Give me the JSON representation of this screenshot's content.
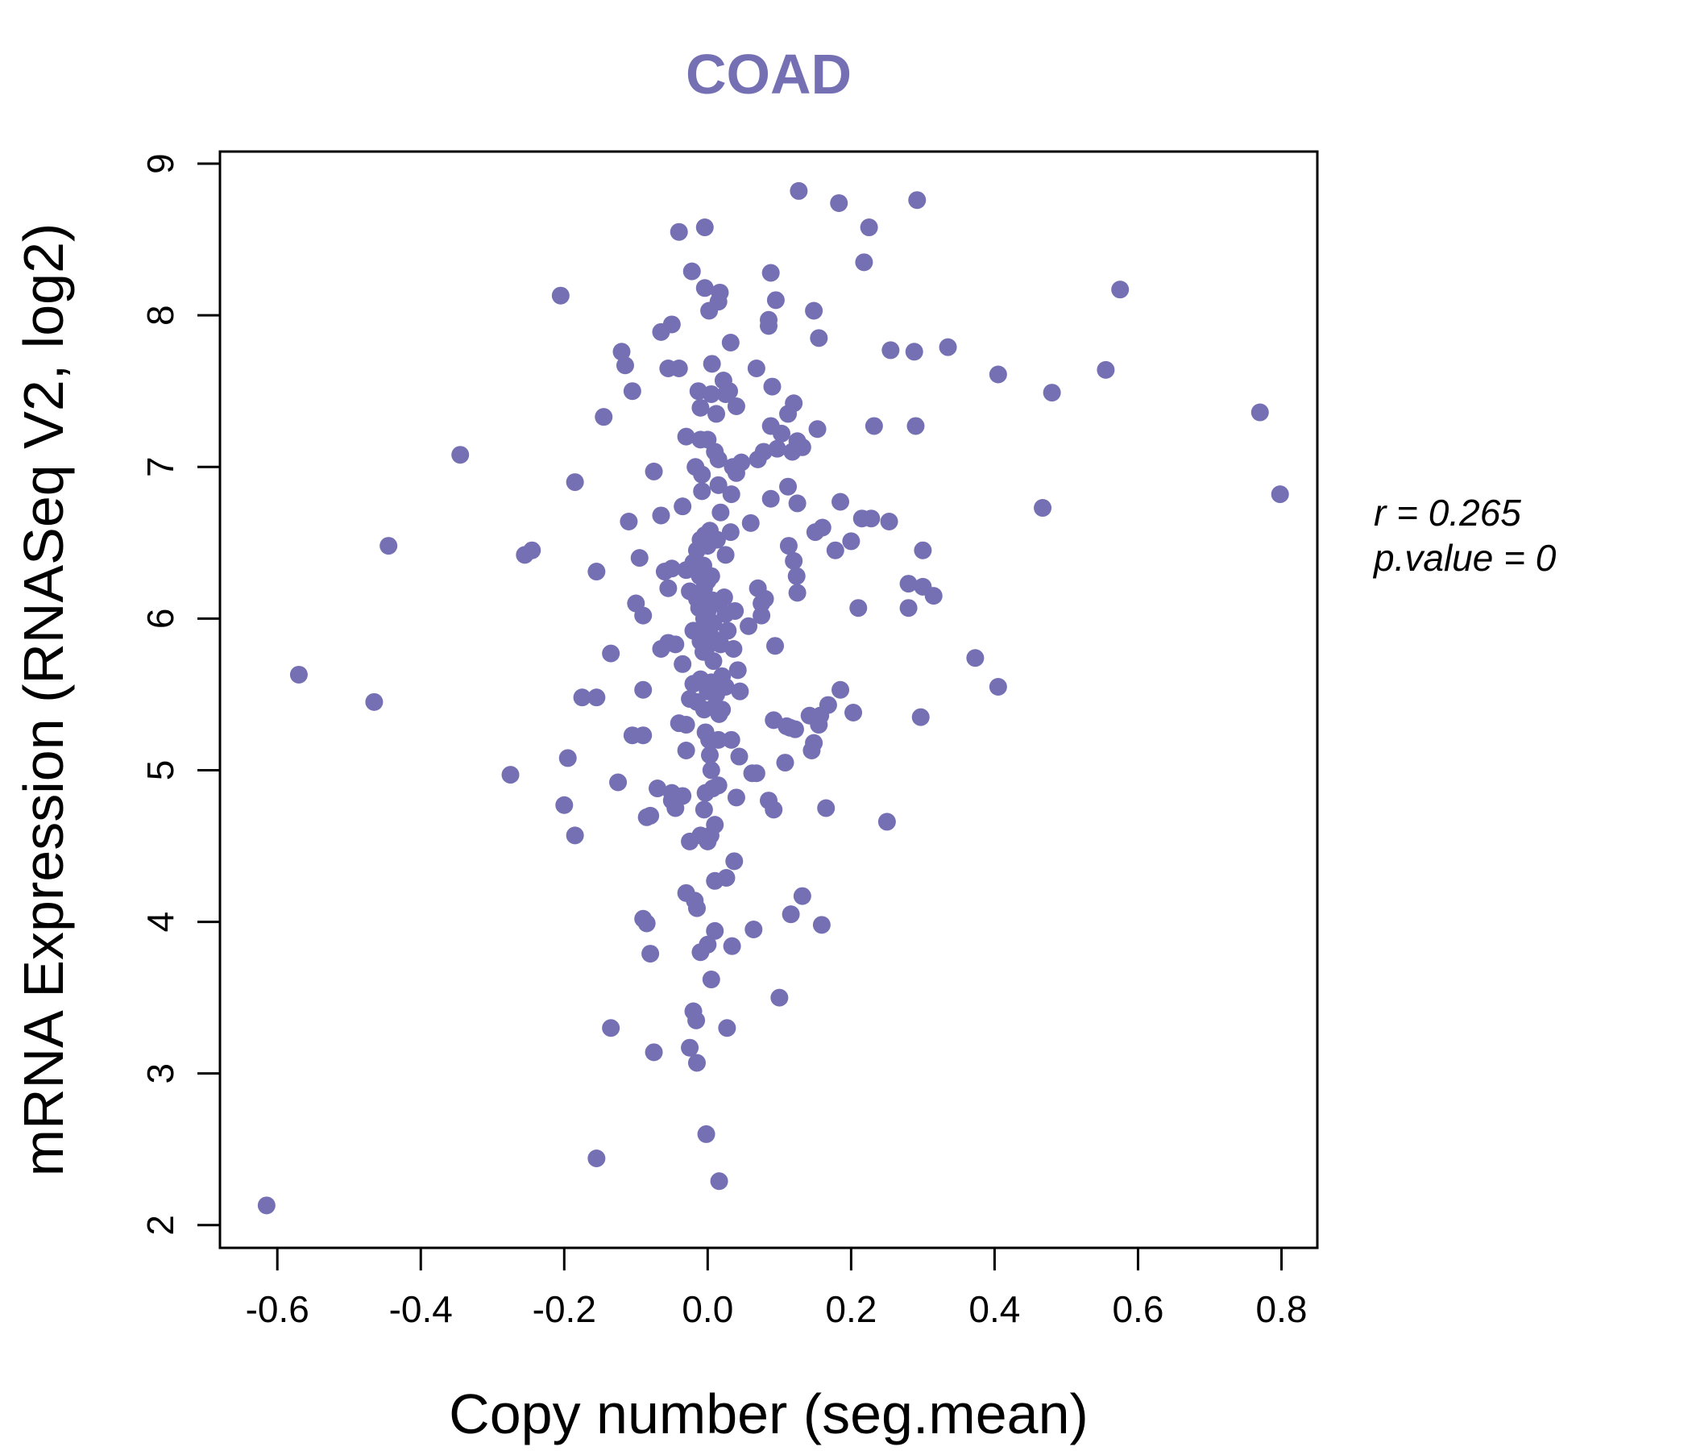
{
  "colors": {
    "points": "#7570b3",
    "title": "#7570b3",
    "axis": "#000000"
  },
  "chart_data": {
    "type": "scatter",
    "title": "COAD",
    "xlabel": "Copy number (seg.mean)",
    "ylabel": "mRNA Expression (RNASeq V2, log2)",
    "xlim": [
      -0.68,
      0.85
    ],
    "ylim": [
      1.85,
      9.08
    ],
    "xticks": [
      -0.6,
      -0.4,
      -0.2,
      0.0,
      0.2,
      0.4,
      0.6,
      0.8
    ],
    "xtick_labels": [
      "-0.6",
      "-0.4",
      "-0.2",
      "0.0",
      "0.2",
      "0.4",
      "0.6",
      "0.8"
    ],
    "yticks": [
      2,
      3,
      4,
      5,
      6,
      7,
      8,
      9
    ],
    "ytick_labels": [
      "2",
      "3",
      "4",
      "5",
      "6",
      "7",
      "8",
      "9"
    ],
    "stats": {
      "r_label": "r = 0.265",
      "p_label": "p.value = 0"
    },
    "points": [
      [
        -0.615,
        2.13
      ],
      [
        -0.57,
        5.63
      ],
      [
        -0.465,
        5.45
      ],
      [
        -0.445,
        6.48
      ],
      [
        -0.345,
        7.08
      ],
      [
        -0.275,
        4.97
      ],
      [
        -0.255,
        6.42
      ],
      [
        -0.245,
        6.45
      ],
      [
        -0.205,
        8.13
      ],
      [
        -0.2,
        4.77
      ],
      [
        -0.195,
        5.08
      ],
      [
        -0.185,
        6.9
      ],
      [
        -0.185,
        4.57
      ],
      [
        -0.175,
        5.48
      ],
      [
        -0.155,
        6.31
      ],
      [
        -0.155,
        5.48
      ],
      [
        -0.145,
        7.33
      ],
      [
        -0.135,
        5.77
      ],
      [
        -0.135,
        3.3
      ],
      [
        -0.155,
        2.44
      ],
      [
        -0.125,
        4.92
      ],
      [
        -0.12,
        7.76
      ],
      [
        -0.115,
        7.67
      ],
      [
        -0.11,
        6.64
      ],
      [
        -0.105,
        7.5
      ],
      [
        -0.105,
        5.23
      ],
      [
        -0.1,
        6.1
      ],
      [
        -0.095,
        6.4
      ],
      [
        -0.09,
        6.02
      ],
      [
        -0.09,
        5.53
      ],
      [
        -0.09,
        5.23
      ],
      [
        -0.09,
        4.02
      ],
      [
        -0.085,
        3.99
      ],
      [
        -0.085,
        4.69
      ],
      [
        -0.08,
        3.79
      ],
      [
        -0.08,
        4.7
      ],
      [
        -0.075,
        6.97
      ],
      [
        -0.075,
        3.14
      ],
      [
        -0.07,
        4.88
      ],
      [
        -0.065,
        6.68
      ],
      [
        -0.065,
        7.89
      ],
      [
        -0.065,
        5.8
      ],
      [
        -0.06,
        6.31
      ],
      [
        -0.055,
        6.2
      ],
      [
        -0.055,
        5.84
      ],
      [
        -0.055,
        7.65
      ],
      [
        -0.05,
        7.94
      ],
      [
        -0.05,
        6.33
      ],
      [
        -0.05,
        4.85
      ],
      [
        -0.05,
        4.8
      ],
      [
        -0.045,
        4.75
      ],
      [
        -0.045,
        5.83
      ],
      [
        -0.04,
        8.55
      ],
      [
        -0.04,
        7.65
      ],
      [
        -0.04,
        5.31
      ],
      [
        -0.035,
        4.83
      ],
      [
        -0.035,
        6.74
      ],
      [
        -0.035,
        5.7
      ],
      [
        -0.03,
        7.2
      ],
      [
        -0.03,
        6.32
      ],
      [
        -0.03,
        5.3
      ],
      [
        -0.03,
        5.13
      ],
      [
        -0.03,
        4.19
      ],
      [
        -0.025,
        4.53
      ],
      [
        -0.025,
        6.18
      ],
      [
        -0.025,
        5.47
      ],
      [
        -0.025,
        3.17
      ],
      [
        -0.022,
        8.29
      ],
      [
        -0.02,
        5.57
      ],
      [
        -0.02,
        6.37
      ],
      [
        -0.02,
        5.92
      ],
      [
        -0.02,
        3.41
      ],
      [
        -0.018,
        4.14
      ],
      [
        -0.017,
        7.0
      ],
      [
        -0.016,
        3.35
      ],
      [
        -0.015,
        6.13
      ],
      [
        -0.015,
        6.45
      ],
      [
        -0.015,
        5.45
      ],
      [
        -0.015,
        4.09
      ],
      [
        -0.015,
        3.07
      ],
      [
        -0.013,
        7.5
      ],
      [
        -0.012,
        6.07
      ],
      [
        -0.012,
        5.9
      ],
      [
        -0.011,
        6.28
      ],
      [
        -0.01,
        7.39
      ],
      [
        -0.01,
        7.18
      ],
      [
        -0.01,
        6.52
      ],
      [
        -0.01,
        5.85
      ],
      [
        -0.01,
        5.6
      ],
      [
        -0.01,
        4.57
      ],
      [
        -0.01,
        3.8
      ],
      [
        -0.008,
        6.95
      ],
      [
        -0.008,
        6.84
      ],
      [
        -0.006,
        6.35
      ],
      [
        -0.006,
        5.78
      ],
      [
        -0.005,
        4.74
      ],
      [
        -0.005,
        6.2
      ],
      [
        -0.005,
        5.4
      ],
      [
        -0.005,
        6.0
      ],
      [
        -0.004,
        6.55
      ],
      [
        -0.004,
        8.58
      ],
      [
        -0.004,
        8.18
      ],
      [
        -0.003,
        5.25
      ],
      [
        -0.003,
        4.85
      ],
      [
        -0.002,
        6.1
      ],
      [
        -0.002,
        5.95
      ],
      [
        -0.002,
        2.6
      ],
      [
        0.0,
        6.48
      ],
      [
        0.0,
        6.25
      ],
      [
        0.0,
        5.82
      ],
      [
        0.0,
        5.52
      ],
      [
        0.0,
        4.53
      ],
      [
        0.0,
        3.85
      ],
      [
        0.0,
        7.18
      ],
      [
        0.0,
        6.05
      ],
      [
        0.002,
        5.2
      ],
      [
        0.002,
        8.03
      ],
      [
        0.003,
        6.58
      ],
      [
        0.003,
        5.1
      ],
      [
        0.004,
        4.57
      ],
      [
        0.005,
        7.48
      ],
      [
        0.005,
        6.28
      ],
      [
        0.005,
        5.88
      ],
      [
        0.005,
        5.58
      ],
      [
        0.005,
        3.62
      ],
      [
        0.005,
        5.0
      ],
      [
        0.006,
        7.68
      ],
      [
        0.007,
        6.12
      ],
      [
        0.007,
        4.88
      ],
      [
        0.008,
        5.72
      ],
      [
        0.008,
        5.97
      ],
      [
        0.01,
        5.42
      ],
      [
        0.01,
        4.64
      ],
      [
        0.01,
        6.1
      ],
      [
        0.01,
        4.27
      ],
      [
        0.01,
        7.1
      ],
      [
        0.01,
        3.94
      ],
      [
        0.012,
        7.35
      ],
      [
        0.012,
        5.5
      ],
      [
        0.013,
        6.52
      ],
      [
        0.014,
        5.85
      ],
      [
        0.015,
        8.09
      ],
      [
        0.015,
        7.05
      ],
      [
        0.015,
        5.2
      ],
      [
        0.015,
        4.9
      ],
      [
        0.015,
        6.88
      ],
      [
        0.016,
        5.37
      ],
      [
        0.016,
        2.29
      ],
      [
        0.017,
        8.15
      ],
      [
        0.018,
        6.7
      ],
      [
        0.018,
        5.83
      ],
      [
        0.02,
        5.62
      ],
      [
        0.02,
        5.4
      ],
      [
        0.022,
        7.57
      ],
      [
        0.023,
        6.14
      ],
      [
        0.025,
        7.48
      ],
      [
        0.025,
        6.03
      ],
      [
        0.025,
        6.42
      ],
      [
        0.025,
        5.55
      ],
      [
        0.026,
        4.29
      ],
      [
        0.027,
        3.3
      ],
      [
        0.028,
        5.92
      ],
      [
        0.03,
        7.5
      ],
      [
        0.032,
        7.82
      ],
      [
        0.032,
        6.57
      ],
      [
        0.033,
        6.82
      ],
      [
        0.033,
        5.2
      ],
      [
        0.034,
        3.84
      ],
      [
        0.035,
        7.0
      ],
      [
        0.036,
        5.8
      ],
      [
        0.037,
        4.4
      ],
      [
        0.038,
        6.05
      ],
      [
        0.04,
        7.4
      ],
      [
        0.04,
        6.96
      ],
      [
        0.04,
        4.82
      ],
      [
        0.042,
        5.66
      ],
      [
        0.044,
        5.09
      ],
      [
        0.045,
        5.52
      ],
      [
        0.047,
        7.03
      ],
      [
        0.057,
        5.95
      ],
      [
        0.06,
        6.63
      ],
      [
        0.062,
        4.98
      ],
      [
        0.064,
        3.95
      ],
      [
        0.068,
        7.65
      ],
      [
        0.068,
        4.98
      ],
      [
        0.07,
        7.05
      ],
      [
        0.07,
        6.2
      ],
      [
        0.075,
        6.02
      ],
      [
        0.075,
        6.1
      ],
      [
        0.078,
        7.1
      ],
      [
        0.08,
        6.13
      ],
      [
        0.085,
        7.97
      ],
      [
        0.085,
        7.93
      ],
      [
        0.085,
        4.8
      ],
      [
        0.088,
        8.28
      ],
      [
        0.088,
        6.79
      ],
      [
        0.088,
        7.27
      ],
      [
        0.09,
        7.53
      ],
      [
        0.092,
        5.33
      ],
      [
        0.092,
        4.74
      ],
      [
        0.094,
        5.82
      ],
      [
        0.095,
        8.1
      ],
      [
        0.097,
        7.12
      ],
      [
        0.1,
        3.5
      ],
      [
        0.103,
        7.22
      ],
      [
        0.108,
        5.05
      ],
      [
        0.11,
        5.29
      ],
      [
        0.112,
        7.35
      ],
      [
        0.112,
        6.87
      ],
      [
        0.113,
        6.48
      ],
      [
        0.115,
        5.28
      ],
      [
        0.116,
        4.05
      ],
      [
        0.118,
        7.1
      ],
      [
        0.12,
        7.42
      ],
      [
        0.12,
        6.38
      ],
      [
        0.122,
        5.27
      ],
      [
        0.124,
        6.28
      ],
      [
        0.125,
        7.17
      ],
      [
        0.125,
        6.76
      ],
      [
        0.125,
        6.17
      ],
      [
        0.127,
        8.82
      ],
      [
        0.132,
        7.13
      ],
      [
        0.132,
        4.17
      ],
      [
        0.142,
        5.36
      ],
      [
        0.145,
        5.13
      ],
      [
        0.148,
        5.18
      ],
      [
        0.148,
        8.03
      ],
      [
        0.15,
        6.57
      ],
      [
        0.153,
        7.25
      ],
      [
        0.155,
        5.3
      ],
      [
        0.155,
        7.85
      ],
      [
        0.157,
        5.36
      ],
      [
        0.159,
        3.98
      ],
      [
        0.16,
        6.6
      ],
      [
        0.165,
        4.75
      ],
      [
        0.168,
        5.43
      ],
      [
        0.178,
        6.45
      ],
      [
        0.183,
        8.74
      ],
      [
        0.185,
        6.77
      ],
      [
        0.185,
        5.53
      ],
      [
        0.2,
        6.51
      ],
      [
        0.203,
        5.38
      ],
      [
        0.21,
        6.07
      ],
      [
        0.215,
        6.66
      ],
      [
        0.218,
        8.35
      ],
      [
        0.225,
        8.58
      ],
      [
        0.228,
        6.66
      ],
      [
        0.232,
        7.27
      ],
      [
        0.25,
        4.66
      ],
      [
        0.253,
        6.64
      ],
      [
        0.255,
        7.77
      ],
      [
        0.28,
        6.23
      ],
      [
        0.28,
        6.07
      ],
      [
        0.288,
        7.76
      ],
      [
        0.29,
        7.27
      ],
      [
        0.292,
        8.76
      ],
      [
        0.297,
        5.35
      ],
      [
        0.3,
        6.45
      ],
      [
        0.3,
        6.21
      ],
      [
        0.315,
        6.15
      ],
      [
        0.335,
        7.79
      ],
      [
        0.373,
        5.74
      ],
      [
        0.405,
        7.61
      ],
      [
        0.405,
        5.55
      ],
      [
        0.467,
        6.73
      ],
      [
        0.48,
        7.49
      ],
      [
        0.555,
        7.64
      ],
      [
        0.575,
        8.17
      ],
      [
        0.77,
        7.36
      ],
      [
        0.798,
        6.82
      ]
    ]
  }
}
